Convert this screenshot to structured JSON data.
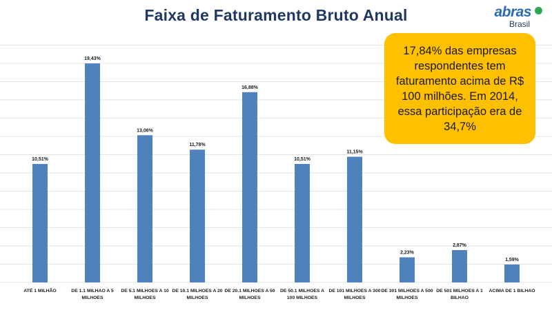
{
  "title": "Faixa de Faturamento Bruto Anual",
  "logo": {
    "word": "abras",
    "sub": "Brasil"
  },
  "callout": "17,84% das empresas respondentes tem faturamento acima de R$ 100 milhões. Em 2014, essa participação era de 34,7%",
  "colors": {
    "bar": "#4f81bd",
    "callout_bg": "#ffc000",
    "title": "#1f3864",
    "logo_blue": "#2b6cb5",
    "logo_green": "#2fa84f"
  },
  "chart_data": {
    "type": "bar",
    "title": "Faixa de Faturamento Bruto Anual",
    "xlabel": "",
    "ylabel": "",
    "ylim": [
      0,
      22
    ],
    "grid": true,
    "categories": [
      [
        "ATÉ 1 MILHÃO"
      ],
      [
        "DE 1.1 MILHAO A 5",
        "MILHOES"
      ],
      [
        "DE 5.1 MILHOES A 10",
        "MILHOES"
      ],
      [
        "DE 10.1 MILHOES A 20",
        "MILHOES"
      ],
      [
        "DE 20.1 MILHOES A 50",
        "MILHOES"
      ],
      [
        "DE 50.1 MILHOES A",
        "100 MILHOES"
      ],
      [
        "DE 101 MILHOES A 300",
        "MILHOES"
      ],
      [
        "DE 301 MILHOES A 500",
        "MILHOES"
      ],
      [
        "DE 501 MILHOES A 1",
        "BILHAO"
      ],
      [
        "ACIMA DE 1 BILHAO"
      ]
    ],
    "values": [
      10.51,
      19.43,
      13.06,
      11.78,
      16.88,
      10.51,
      11.15,
      2.23,
      2.87,
      1.59
    ],
    "value_labels": [
      "10,51%",
      "19,43%",
      "13,06%",
      "11,78%",
      "16,88%",
      "10,51%",
      "11,15%",
      "2,23%",
      "2,87%",
      "1,59%"
    ]
  }
}
